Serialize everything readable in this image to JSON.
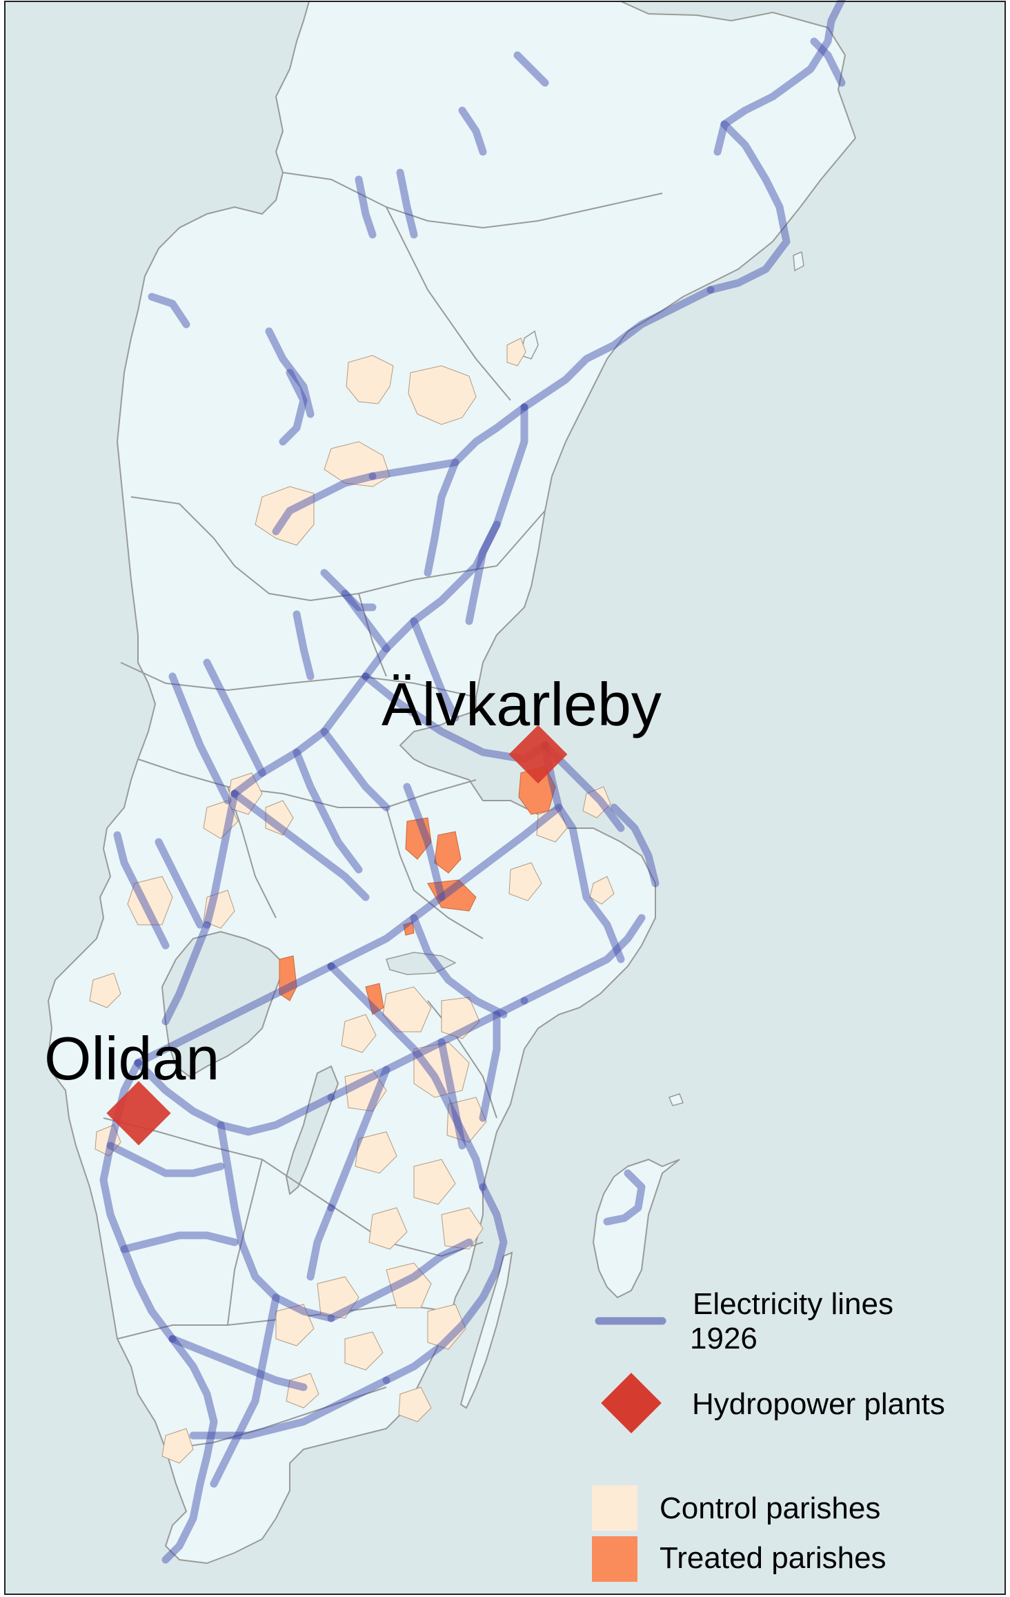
{
  "map": {
    "colors": {
      "sea": "#dbe8ea",
      "land": "#eaf6f8",
      "border": "#9a9a9a",
      "electricity_line": "#3c46a8",
      "hydropower": "#d63b2f",
      "control_parish": "#fdebd6",
      "treated_parish": "#f98c5a"
    },
    "cities": {
      "alvkarleby": "Älvkarleby",
      "olidan": "Olidan"
    },
    "legend": {
      "electricity_line_1": "Electricity lines",
      "electricity_line_2": "1926",
      "hydropower": "Hydropower plants",
      "control": "Control parishes",
      "treated": "Treated parishes"
    }
  }
}
